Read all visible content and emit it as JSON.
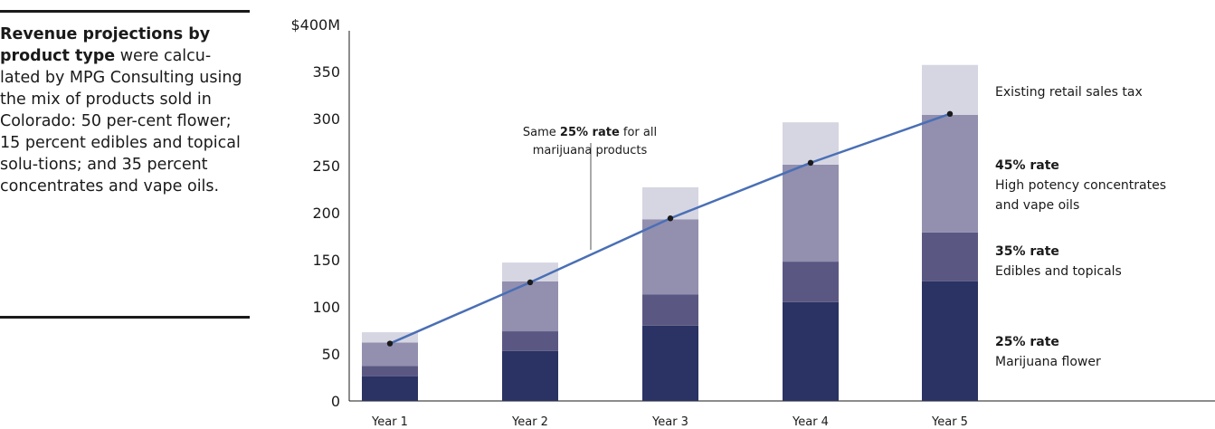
{
  "sidebar": {
    "bold_text": "Revenue projections by product type",
    "body_text": " were calcu-lated by MPG Consulting using the mix of products sold in Colorado: 50 per-cent flower; 15 percent edibles and topical solu-tions; and 35 percent concentrates and vape oils."
  },
  "chart_data": {
    "type": "bar",
    "stacked": true,
    "categories": [
      "Year 1",
      "Year 2",
      "Year 3",
      "Year 4",
      "Year 5"
    ],
    "y_tick_labels": [
      "0",
      "50",
      "100",
      "150",
      "200",
      "250",
      "300",
      "350",
      "$400M"
    ],
    "ylim": [
      0,
      400
    ],
    "grid": false,
    "series": [
      {
        "name": "Marijuana flower",
        "rate_label": "25% rate",
        "color": "#2a3363",
        "values": [
          26,
          53,
          80,
          105,
          127
        ]
      },
      {
        "name": "Edibles and topicals",
        "rate_label": "35% rate",
        "color": "#5a5882",
        "values": [
          11,
          21,
          33,
          43,
          52
        ]
      },
      {
        "name": "High potency concentrates and vape oils",
        "rate_label": "45% rate",
        "color": "#928faf",
        "values": [
          25,
          53,
          80,
          103,
          125
        ]
      },
      {
        "name": "Existing retail sales tax",
        "rate_label": "",
        "color": "#d6d6e2",
        "values": [
          11,
          20,
          34,
          45,
          53
        ]
      }
    ],
    "line_series": {
      "name": "Same 25% rate for all marijuana products",
      "color": "#4a6fb5",
      "values": [
        61,
        126,
        194,
        253,
        305
      ]
    },
    "annotation": {
      "prefix": "Same ",
      "bold": "25% rate",
      "suffix": " for all",
      "line2": "marijuana products"
    }
  }
}
